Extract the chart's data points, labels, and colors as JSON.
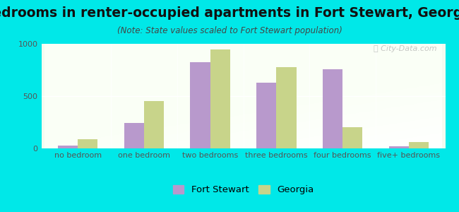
{
  "title": "Bedrooms in renter-occupied apartments in Fort Stewart, Georgia",
  "subtitle": "(Note: State values scaled to Fort Stewart population)",
  "categories": [
    "no bedroom",
    "one bedroom",
    "two bedrooms",
    "three bedrooms",
    "four bedrooms",
    "five+ bedrooms"
  ],
  "fort_stewart": [
    28,
    245,
    820,
    625,
    755,
    22
  ],
  "georgia": [
    90,
    450,
    940,
    775,
    205,
    60
  ],
  "fort_stewart_color": "#b899cc",
  "georgia_color": "#c8d48a",
  "ylim": [
    0,
    1000
  ],
  "yticks": [
    0,
    500,
    1000
  ],
  "background_color": "#00e8e8",
  "legend_fort_stewart": "Fort Stewart",
  "legend_georgia": "Georgia",
  "watermark": "Ⓢ City-Data.com",
  "bar_width": 0.3,
  "title_fontsize": 13.5,
  "subtitle_fontsize": 8.5,
  "axis_fontsize": 8,
  "legend_fontsize": 9.5
}
